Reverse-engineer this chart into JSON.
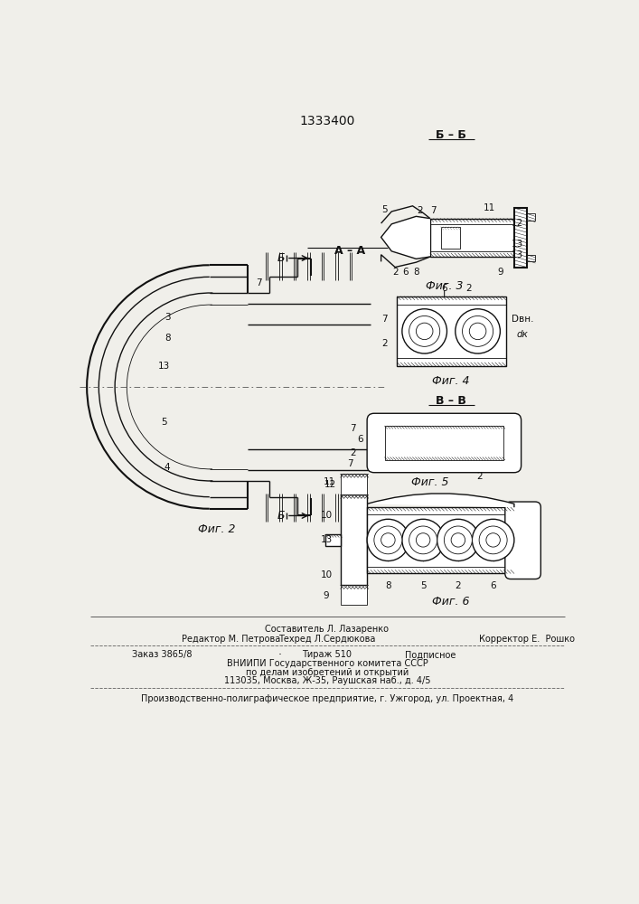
{
  "patent_number": "1333400",
  "bg_color": "#f0efea",
  "line_color": "#111111",
  "fig2_label": "Фиг. 2",
  "fig3_label": "Фиг. 3",
  "fig4_label": "Фиг. 4",
  "fig5_label": "Фиг. 5",
  "fig6_label": "Фиг. 6",
  "section_aa": "А – А",
  "section_bb": "Б – Б",
  "section_vv": "В – В",
  "footer_comp": "Составитель Л. Лазаренко",
  "footer_edit": "Редактор М. Петрова",
  "footer_tech": "Техред Л.Сердюкова",
  "footer_corr": "Корректор Е.  Рошко",
  "footer_order": "Заказ 3865/8",
  "footer_dot": "·",
  "footer_circ": "Тираж 510",
  "footer_sub": "Подписное",
  "footer_vniip1": "ВНИИПИ Государственного комитета СССР",
  "footer_vniip2": "по делам изобретений и открытий",
  "footer_vniip3": "113035, Москва, Ж-35, Раушская наб., д. 4/5",
  "footer_prod": "Производственно-полиграфическое предприятие, г. Ужгород, ул. Проектная, 4",
  "dv_label": "Dвн.",
  "dk_label": "dк"
}
